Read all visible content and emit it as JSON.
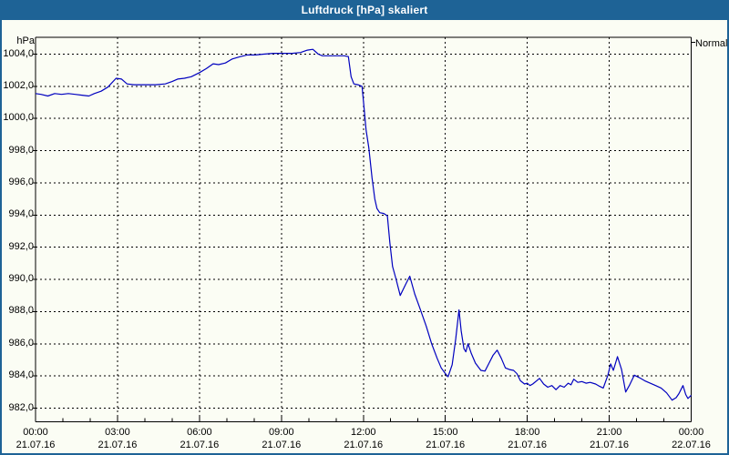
{
  "window": {
    "title": "Luftdruck [hPa] skaliert",
    "colors": {
      "titlebar": "#1e6396",
      "border": "#1e6396",
      "background": "#fbfdf4",
      "text": "#000000",
      "grid": "#000000",
      "series_line": "#0000bf"
    }
  },
  "chart_data": {
    "type": "line",
    "title": "Luftdruck [hPa] skaliert",
    "grid": "dashed",
    "legend": {
      "label": "Normal",
      "position": "top-right-outside"
    },
    "x": {
      "unit": "time",
      "range_hours": [
        0,
        24
      ],
      "major_tick_every_hours": 3,
      "minor_tick_every_hours": 1,
      "ticks": [
        {
          "hour": 0,
          "time": "00:00",
          "date": "21.07.16"
        },
        {
          "hour": 3,
          "time": "03:00",
          "date": "21.07.16"
        },
        {
          "hour": 6,
          "time": "06:00",
          "date": "21.07.16"
        },
        {
          "hour": 9,
          "time": "09:00",
          "date": "21.07.16"
        },
        {
          "hour": 12,
          "time": "12:00",
          "date": "21.07.16"
        },
        {
          "hour": 15,
          "time": "15:00",
          "date": "21.07.16"
        },
        {
          "hour": 18,
          "time": "18:00",
          "date": "21.07.16"
        },
        {
          "hour": 21,
          "time": "21:00",
          "date": "21.07.16"
        },
        {
          "hour": 24,
          "time": "00:00",
          "date": "22.07.16"
        }
      ]
    },
    "y": {
      "unit": "hPa",
      "min": 982,
      "max": 1004,
      "step": 2,
      "ticks": [
        {
          "value": 1004,
          "label": "1004,0"
        },
        {
          "value": 1002,
          "label": "1002,0"
        },
        {
          "value": 1000,
          "label": "1000,0"
        },
        {
          "value": 998,
          "label": "998,0"
        },
        {
          "value": 996,
          "label": "996,0"
        },
        {
          "value": 994,
          "label": "994,0"
        },
        {
          "value": 992,
          "label": "992,0"
        },
        {
          "value": 990,
          "label": "990,0"
        },
        {
          "value": 988,
          "label": "988,0"
        },
        {
          "value": 986,
          "label": "986,0"
        },
        {
          "value": 984,
          "label": "984,0"
        },
        {
          "value": 982,
          "label": "982,0"
        }
      ]
    },
    "series": [
      {
        "name": "Normal",
        "color": "#0000bf",
        "points_hour_hpa": [
          [
            0,
            1001.55
          ],
          [
            0.2,
            1001.5
          ],
          [
            0.45,
            1001.4
          ],
          [
            0.7,
            1001.55
          ],
          [
            0.95,
            1001.5
          ],
          [
            1.2,
            1001.55
          ],
          [
            1.45,
            1001.5
          ],
          [
            1.7,
            1001.45
          ],
          [
            1.95,
            1001.4
          ],
          [
            2.15,
            1001.55
          ],
          [
            2.4,
            1001.7
          ],
          [
            2.65,
            1001.95
          ],
          [
            2.95,
            1002.5
          ],
          [
            3.15,
            1002.45
          ],
          [
            3.35,
            1002.15
          ],
          [
            3.6,
            1002.1
          ],
          [
            4.0,
            1002.1
          ],
          [
            4.4,
            1002.1
          ],
          [
            4.75,
            1002.15
          ],
          [
            5.0,
            1002.3
          ],
          [
            5.2,
            1002.45
          ],
          [
            5.45,
            1002.5
          ],
          [
            5.7,
            1002.6
          ],
          [
            6.0,
            1002.85
          ],
          [
            6.25,
            1003.1
          ],
          [
            6.5,
            1003.4
          ],
          [
            6.7,
            1003.35
          ],
          [
            6.95,
            1003.45
          ],
          [
            7.2,
            1003.7
          ],
          [
            7.5,
            1003.85
          ],
          [
            7.75,
            1003.95
          ],
          [
            8.05,
            1003.95
          ],
          [
            8.35,
            1004.0
          ],
          [
            8.7,
            1004.05
          ],
          [
            9.05,
            1004.05
          ],
          [
            9.4,
            1004.05
          ],
          [
            9.7,
            1004.1
          ],
          [
            9.95,
            1004.25
          ],
          [
            10.15,
            1004.3
          ],
          [
            10.35,
            1004.0
          ],
          [
            10.5,
            1003.9
          ],
          [
            10.9,
            1003.9
          ],
          [
            11.3,
            1003.9
          ],
          [
            11.45,
            1003.85
          ],
          [
            11.55,
            1002.6
          ],
          [
            11.65,
            1002.15
          ],
          [
            11.8,
            1002.1
          ],
          [
            11.95,
            1002.0
          ],
          [
            12.02,
            1000.8
          ],
          [
            12.1,
            999.3
          ],
          [
            12.2,
            998.2
          ],
          [
            12.32,
            996.3
          ],
          [
            12.42,
            995.0
          ],
          [
            12.5,
            994.4
          ],
          [
            12.6,
            994.15
          ],
          [
            12.75,
            994.1
          ],
          [
            12.88,
            993.95
          ],
          [
            12.97,
            992.3
          ],
          [
            13.07,
            990.8
          ],
          [
            13.2,
            990.0
          ],
          [
            13.35,
            989.0
          ],
          [
            13.55,
            989.7
          ],
          [
            13.7,
            990.2
          ],
          [
            13.88,
            989.1
          ],
          [
            14.05,
            988.3
          ],
          [
            14.3,
            987.1
          ],
          [
            14.5,
            986.0
          ],
          [
            14.7,
            985.1
          ],
          [
            14.85,
            984.5
          ],
          [
            15.0,
            984.15
          ],
          [
            15.1,
            983.95
          ],
          [
            15.25,
            984.7
          ],
          [
            15.38,
            986.3
          ],
          [
            15.5,
            988.1
          ],
          [
            15.58,
            986.8
          ],
          [
            15.68,
            985.7
          ],
          [
            15.75,
            985.5
          ],
          [
            15.83,
            986.0
          ],
          [
            15.95,
            985.4
          ],
          [
            16.1,
            984.8
          ],
          [
            16.3,
            984.35
          ],
          [
            16.45,
            984.3
          ],
          [
            16.6,
            984.8
          ],
          [
            16.75,
            985.3
          ],
          [
            16.9,
            985.6
          ],
          [
            17.05,
            985.1
          ],
          [
            17.2,
            984.5
          ],
          [
            17.35,
            984.4
          ],
          [
            17.5,
            984.35
          ],
          [
            17.62,
            984.15
          ],
          [
            17.75,
            983.7
          ],
          [
            17.9,
            983.5
          ],
          [
            18.0,
            983.55
          ],
          [
            18.1,
            983.4
          ],
          [
            18.2,
            983.5
          ],
          [
            18.45,
            983.85
          ],
          [
            18.6,
            983.5
          ],
          [
            18.75,
            983.3
          ],
          [
            18.9,
            983.4
          ],
          [
            19.05,
            983.15
          ],
          [
            19.2,
            983.4
          ],
          [
            19.35,
            983.3
          ],
          [
            19.5,
            983.55
          ],
          [
            19.6,
            983.45
          ],
          [
            19.7,
            983.8
          ],
          [
            19.85,
            983.6
          ],
          [
            20.0,
            983.65
          ],
          [
            20.15,
            983.55
          ],
          [
            20.3,
            983.6
          ],
          [
            20.5,
            983.5
          ],
          [
            20.65,
            983.35
          ],
          [
            20.78,
            983.25
          ],
          [
            20.95,
            984.05
          ],
          [
            21.05,
            984.75
          ],
          [
            21.15,
            984.35
          ],
          [
            21.3,
            985.2
          ],
          [
            21.45,
            984.4
          ],
          [
            21.6,
            983.0
          ],
          [
            21.75,
            983.45
          ],
          [
            21.92,
            984.05
          ],
          [
            22.1,
            983.9
          ],
          [
            22.3,
            983.7
          ],
          [
            22.5,
            983.55
          ],
          [
            22.7,
            983.4
          ],
          [
            22.9,
            983.25
          ],
          [
            23.1,
            982.95
          ],
          [
            23.3,
            982.5
          ],
          [
            23.45,
            982.65
          ],
          [
            23.55,
            982.9
          ],
          [
            23.7,
            983.4
          ],
          [
            23.8,
            982.85
          ],
          [
            23.88,
            982.6
          ],
          [
            24.0,
            982.8
          ]
        ]
      }
    ]
  }
}
